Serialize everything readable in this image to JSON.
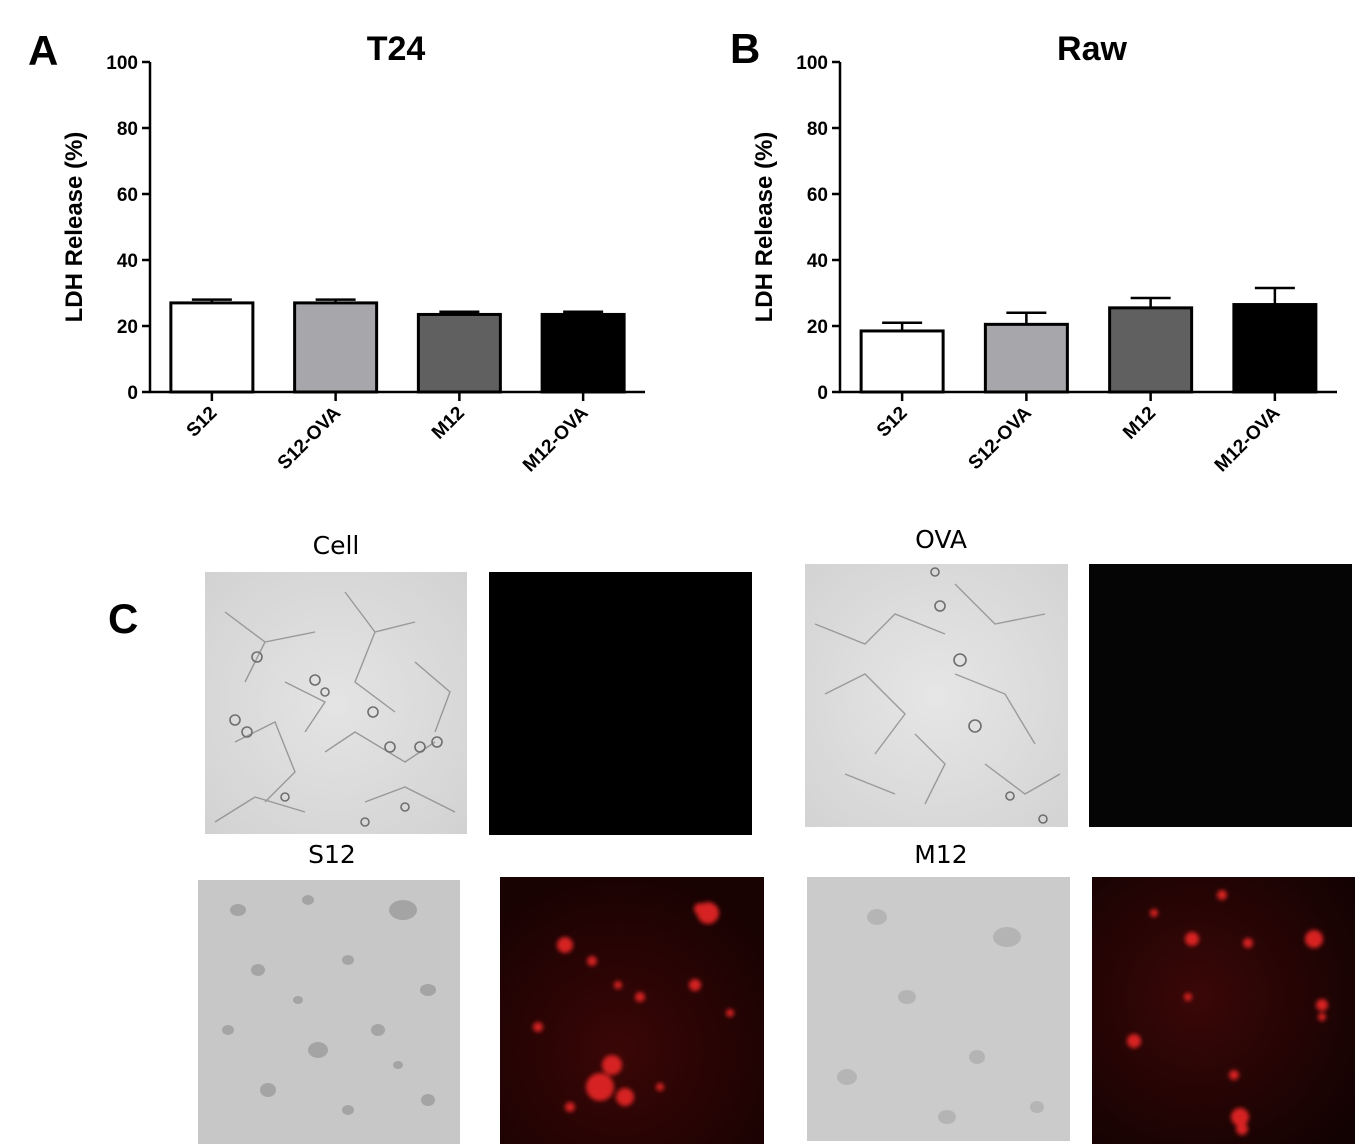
{
  "panels": {
    "a": {
      "letter": "A"
    },
    "b": {
      "letter": "B"
    },
    "c": {
      "letter": "C"
    }
  },
  "chart_data": [
    {
      "type": "bar",
      "title": "T24",
      "xlabel": "",
      "ylabel": "LDH Release (%)",
      "ylim": [
        0,
        100
      ],
      "yticks": [
        0,
        20,
        40,
        60,
        80,
        100
      ],
      "grid": false,
      "categories": [
        "S12",
        "S12-OVA",
        "M12",
        "M12-OVA"
      ],
      "values": [
        27,
        27,
        23.5,
        23.5
      ],
      "errors": [
        1,
        1,
        0.8,
        0.8
      ],
      "colors": [
        "#ffffff",
        "#a6a6ab",
        "#606060",
        "#000000"
      ]
    },
    {
      "type": "bar",
      "title": "Raw",
      "xlabel": "",
      "ylabel": "LDH Release (%)",
      "ylim": [
        0,
        100
      ],
      "yticks": [
        0,
        20,
        40,
        60,
        80,
        100
      ],
      "grid": false,
      "categories": [
        "S12",
        "S12-OVA",
        "M12",
        "M12-OVA"
      ],
      "values": [
        18.5,
        20.5,
        25.5,
        26.5
      ],
      "errors": [
        2.5,
        3.5,
        3,
        5
      ],
      "colors": [
        "#ffffff",
        "#a6a6ab",
        "#606060",
        "#000000"
      ]
    }
  ],
  "micrographs": {
    "cell": {
      "title": "Cell"
    },
    "ova": {
      "title": "OVA"
    },
    "s12": {
      "title": "S12"
    },
    "m12": {
      "title": "M12"
    }
  }
}
